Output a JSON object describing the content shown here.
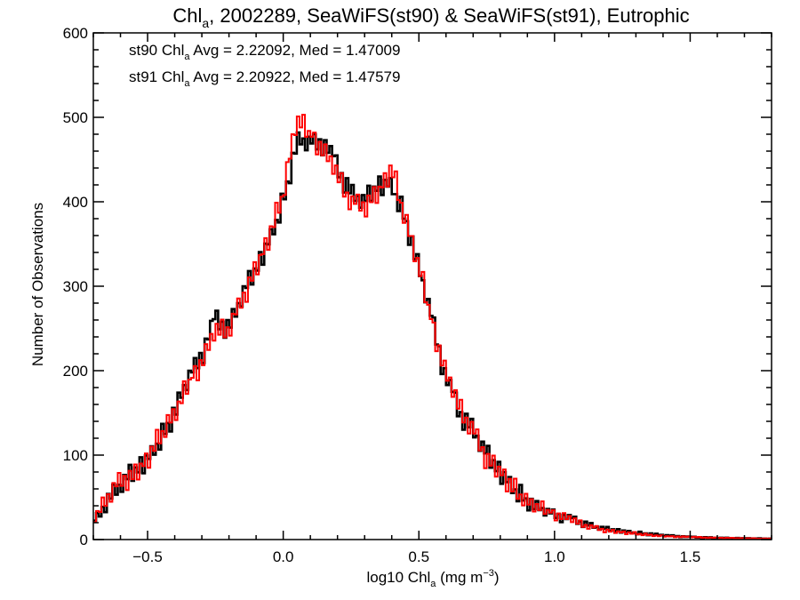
{
  "chart_data": {
    "type": "line",
    "title": {
      "pre": "Chl",
      "sub": "a",
      "post": ", 2002289, SeaWiFS(st90) & SeaWiFS(st91), Eutrophic"
    },
    "xlabel": {
      "pre": "log10 Chl",
      "sub": "a",
      "post": " (mg m",
      "sup": "−3",
      "end": ")"
    },
    "ylabel": "Number of Observations",
    "xlim": [
      -0.7,
      1.8
    ],
    "ylim": [
      0,
      600
    ],
    "xticks": [
      -0.5,
      0.0,
      0.5,
      1.0,
      1.5
    ],
    "xtick_labels": [
      "−0.5",
      "0.0",
      "0.5",
      "1.0",
      "1.5"
    ],
    "yticks": [
      0,
      100,
      200,
      300,
      400,
      500,
      600
    ],
    "ytick_labels": [
      "0",
      "100",
      "200",
      "300",
      "400",
      "500",
      "600"
    ],
    "annotations": [
      {
        "pre": "st90 Chl",
        "sub": "a",
        "post": " Avg = 2.22092, Med = 1.47009",
        "color": "#000000"
      },
      {
        "pre": "st91 Chl",
        "sub": "a",
        "post": " Avg = 2.20922, Med = 1.47579",
        "color": "#ff0000"
      }
    ],
    "bin_width": 0.01,
    "bin_start": -0.7,
    "series": [
      {
        "color": "#000000",
        "anchors": [
          [
            -0.7,
            18
          ],
          [
            -0.65,
            45
          ],
          [
            -0.6,
            65
          ],
          [
            -0.55,
            80
          ],
          [
            -0.5,
            95
          ],
          [
            -0.45,
            120
          ],
          [
            -0.4,
            150
          ],
          [
            -0.35,
            190
          ],
          [
            -0.3,
            220
          ],
          [
            -0.25,
            260
          ],
          [
            -0.2,
            250
          ],
          [
            -0.15,
            290
          ],
          [
            -0.1,
            320
          ],
          [
            -0.05,
            355
          ],
          [
            0.0,
            400
          ],
          [
            0.05,
            470
          ],
          [
            0.1,
            470
          ],
          [
            0.15,
            470
          ],
          [
            0.2,
            440
          ],
          [
            0.25,
            410
          ],
          [
            0.3,
            400
          ],
          [
            0.35,
            420
          ],
          [
            0.4,
            420
          ],
          [
            0.45,
            380
          ],
          [
            0.5,
            320
          ],
          [
            0.55,
            260
          ],
          [
            0.6,
            190
          ],
          [
            0.65,
            150
          ],
          [
            0.7,
            130
          ],
          [
            0.75,
            100
          ],
          [
            0.8,
            80
          ],
          [
            0.85,
            60
          ],
          [
            0.9,
            45
          ],
          [
            0.95,
            35
          ],
          [
            1.0,
            30
          ],
          [
            1.05,
            25
          ],
          [
            1.1,
            20
          ],
          [
            1.15,
            15
          ],
          [
            1.2,
            12
          ],
          [
            1.3,
            8
          ],
          [
            1.4,
            5
          ],
          [
            1.5,
            3
          ],
          [
            1.6,
            2
          ],
          [
            1.8,
            1
          ]
        ],
        "noise": [
          5,
          12,
          -8,
          3,
          -14,
          9,
          -3,
          11,
          -6,
          2,
          -10,
          7,
          -1,
          13,
          -9,
          4,
          -5,
          10,
          -12,
          6,
          -2,
          8,
          -7,
          1,
          -11,
          14,
          -4,
          3,
          -13,
          9,
          -6,
          12,
          -2,
          5,
          -9,
          7,
          -1,
          10,
          -8,
          4,
          -15,
          6,
          -3,
          11
        ]
      },
      {
        "color": "#ff0000",
        "anchors": [
          [
            -0.7,
            20
          ],
          [
            -0.65,
            50
          ],
          [
            -0.6,
            70
          ],
          [
            -0.55,
            75
          ],
          [
            -0.5,
            95
          ],
          [
            -0.45,
            125
          ],
          [
            -0.4,
            150
          ],
          [
            -0.35,
            185
          ],
          [
            -0.3,
            210
          ],
          [
            -0.25,
            245
          ],
          [
            -0.2,
            250
          ],
          [
            -0.15,
            285
          ],
          [
            -0.1,
            320
          ],
          [
            -0.05,
            360
          ],
          [
            0.0,
            410
          ],
          [
            0.05,
            500
          ],
          [
            0.1,
            480
          ],
          [
            0.15,
            460
          ],
          [
            0.2,
            430
          ],
          [
            0.25,
            400
          ],
          [
            0.3,
            395
          ],
          [
            0.35,
            410
          ],
          [
            0.4,
            440
          ],
          [
            0.45,
            380
          ],
          [
            0.5,
            325
          ],
          [
            0.55,
            255
          ],
          [
            0.6,
            195
          ],
          [
            0.65,
            155
          ],
          [
            0.7,
            130
          ],
          [
            0.75,
            95
          ],
          [
            0.8,
            80
          ],
          [
            0.85,
            60
          ],
          [
            0.9,
            45
          ],
          [
            0.95,
            38
          ],
          [
            1.0,
            30
          ],
          [
            1.05,
            25
          ],
          [
            1.1,
            18
          ],
          [
            1.15,
            14
          ],
          [
            1.2,
            10
          ],
          [
            1.3,
            7
          ],
          [
            1.4,
            4
          ],
          [
            1.5,
            3
          ],
          [
            1.6,
            2
          ],
          [
            1.8,
            1
          ]
        ],
        "noise": [
          -6,
          10,
          -4,
          13,
          -9,
          2,
          -12,
          7,
          -1,
          11,
          -7,
          4,
          -14,
          8,
          -3,
          12,
          -10,
          5,
          -2,
          9,
          -13,
          6,
          -5,
          14,
          -8,
          1,
          -11,
          10,
          -4,
          7,
          -12,
          3,
          -6,
          13,
          -9,
          2,
          -1,
          8,
          -14,
          5,
          -7,
          11,
          -3,
          9
        ]
      }
    ]
  }
}
